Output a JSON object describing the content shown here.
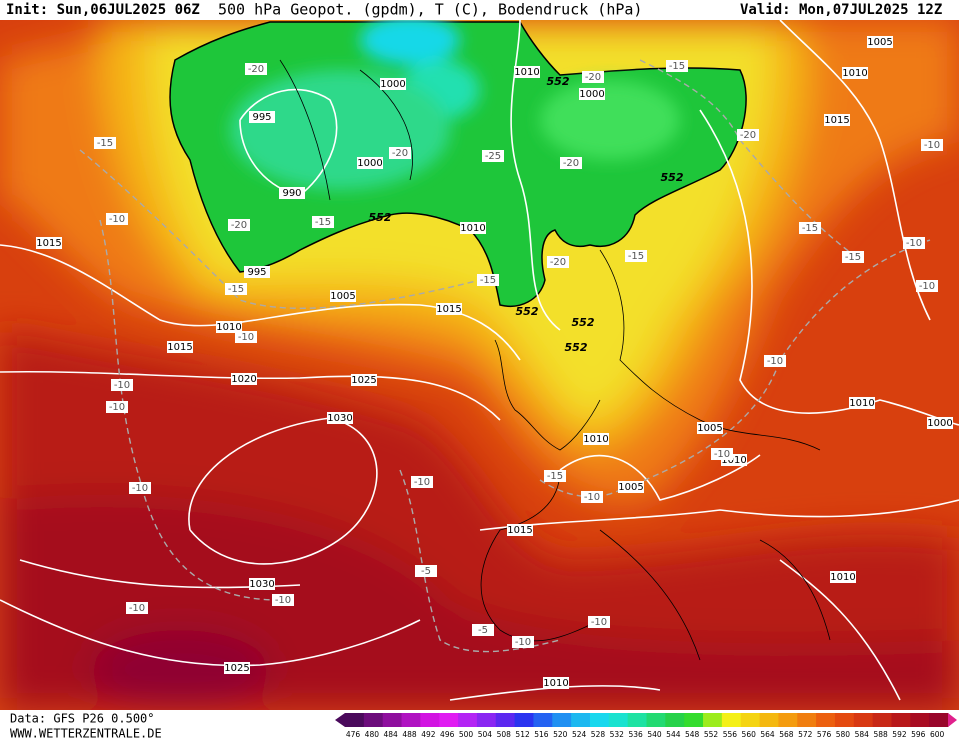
{
  "header": {
    "init": "Init: Sun,06JUL2025 06Z",
    "title": "500 hPa Geopot. (gpdm), T (C), Bodendruck (hPa)",
    "valid": "Valid: Mon,07JUL2025 12Z"
  },
  "footer": {
    "source": "Data: GFS P26 0.500°",
    "website": "WWW.WETTERZENTRALE.DE"
  },
  "isobar_labels": [
    "995",
    "1000",
    "1000",
    "990",
    "995",
    "1005",
    "1010",
    "1015",
    "1015",
    "1020",
    "1025",
    "1030",
    "1030",
    "1025",
    "1010",
    "1015",
    "1010",
    "1000",
    "1005",
    "1010",
    "1015",
    "1010",
    "1005",
    "1010",
    "1010",
    "1005",
    "1015",
    "1010",
    "1010",
    "1000"
  ],
  "temperature_labels": [
    "-20",
    "-15",
    "-10",
    "-20",
    "-15",
    "-10",
    "-10",
    "-10",
    "-10",
    "-10",
    "-10",
    "-20",
    "-15",
    "-25",
    "-20",
    "-20",
    "-15",
    "-20",
    "-15",
    "-20",
    "-15",
    "-15",
    "-15",
    "-10",
    "-10",
    "-10",
    "-10",
    "-10",
    "-15",
    "-10",
    "-10",
    "-5",
    "-5",
    "-10",
    "-10"
  ],
  "height_labels": [
    "552",
    "552",
    "552",
    "552",
    "552",
    "552"
  ],
  "legend": {
    "labels": [
      "476",
      "480",
      "484",
      "488",
      "492",
      "496",
      "500",
      "504",
      "508",
      "512",
      "516",
      "520",
      "524",
      "528",
      "532",
      "536",
      "540",
      "544",
      "548",
      "552",
      "556",
      "560",
      "564",
      "568",
      "572",
      "576",
      "580",
      "584",
      "588",
      "592",
      "596",
      "600"
    ],
    "colors": [
      "#4a0a5c",
      "#6c0c7c",
      "#8e0e9e",
      "#b012c2",
      "#d214e2",
      "#e01cf2",
      "#b424f4",
      "#8a26f2",
      "#5c28f0",
      "#2a34f0",
      "#2462f2",
      "#2090f2",
      "#1cb8f0",
      "#18d8ee",
      "#1ae2d0",
      "#1ee2a2",
      "#22da72",
      "#26d24a",
      "#34dc2e",
      "#9cec1c",
      "#f4f018",
      "#f4d412",
      "#f4b810",
      "#f49c10",
      "#f07e10",
      "#ec6010",
      "#e44a10",
      "#d83812",
      "#c82816",
      "#b8181a",
      "#a80c22",
      "#98062a"
    ]
  }
}
